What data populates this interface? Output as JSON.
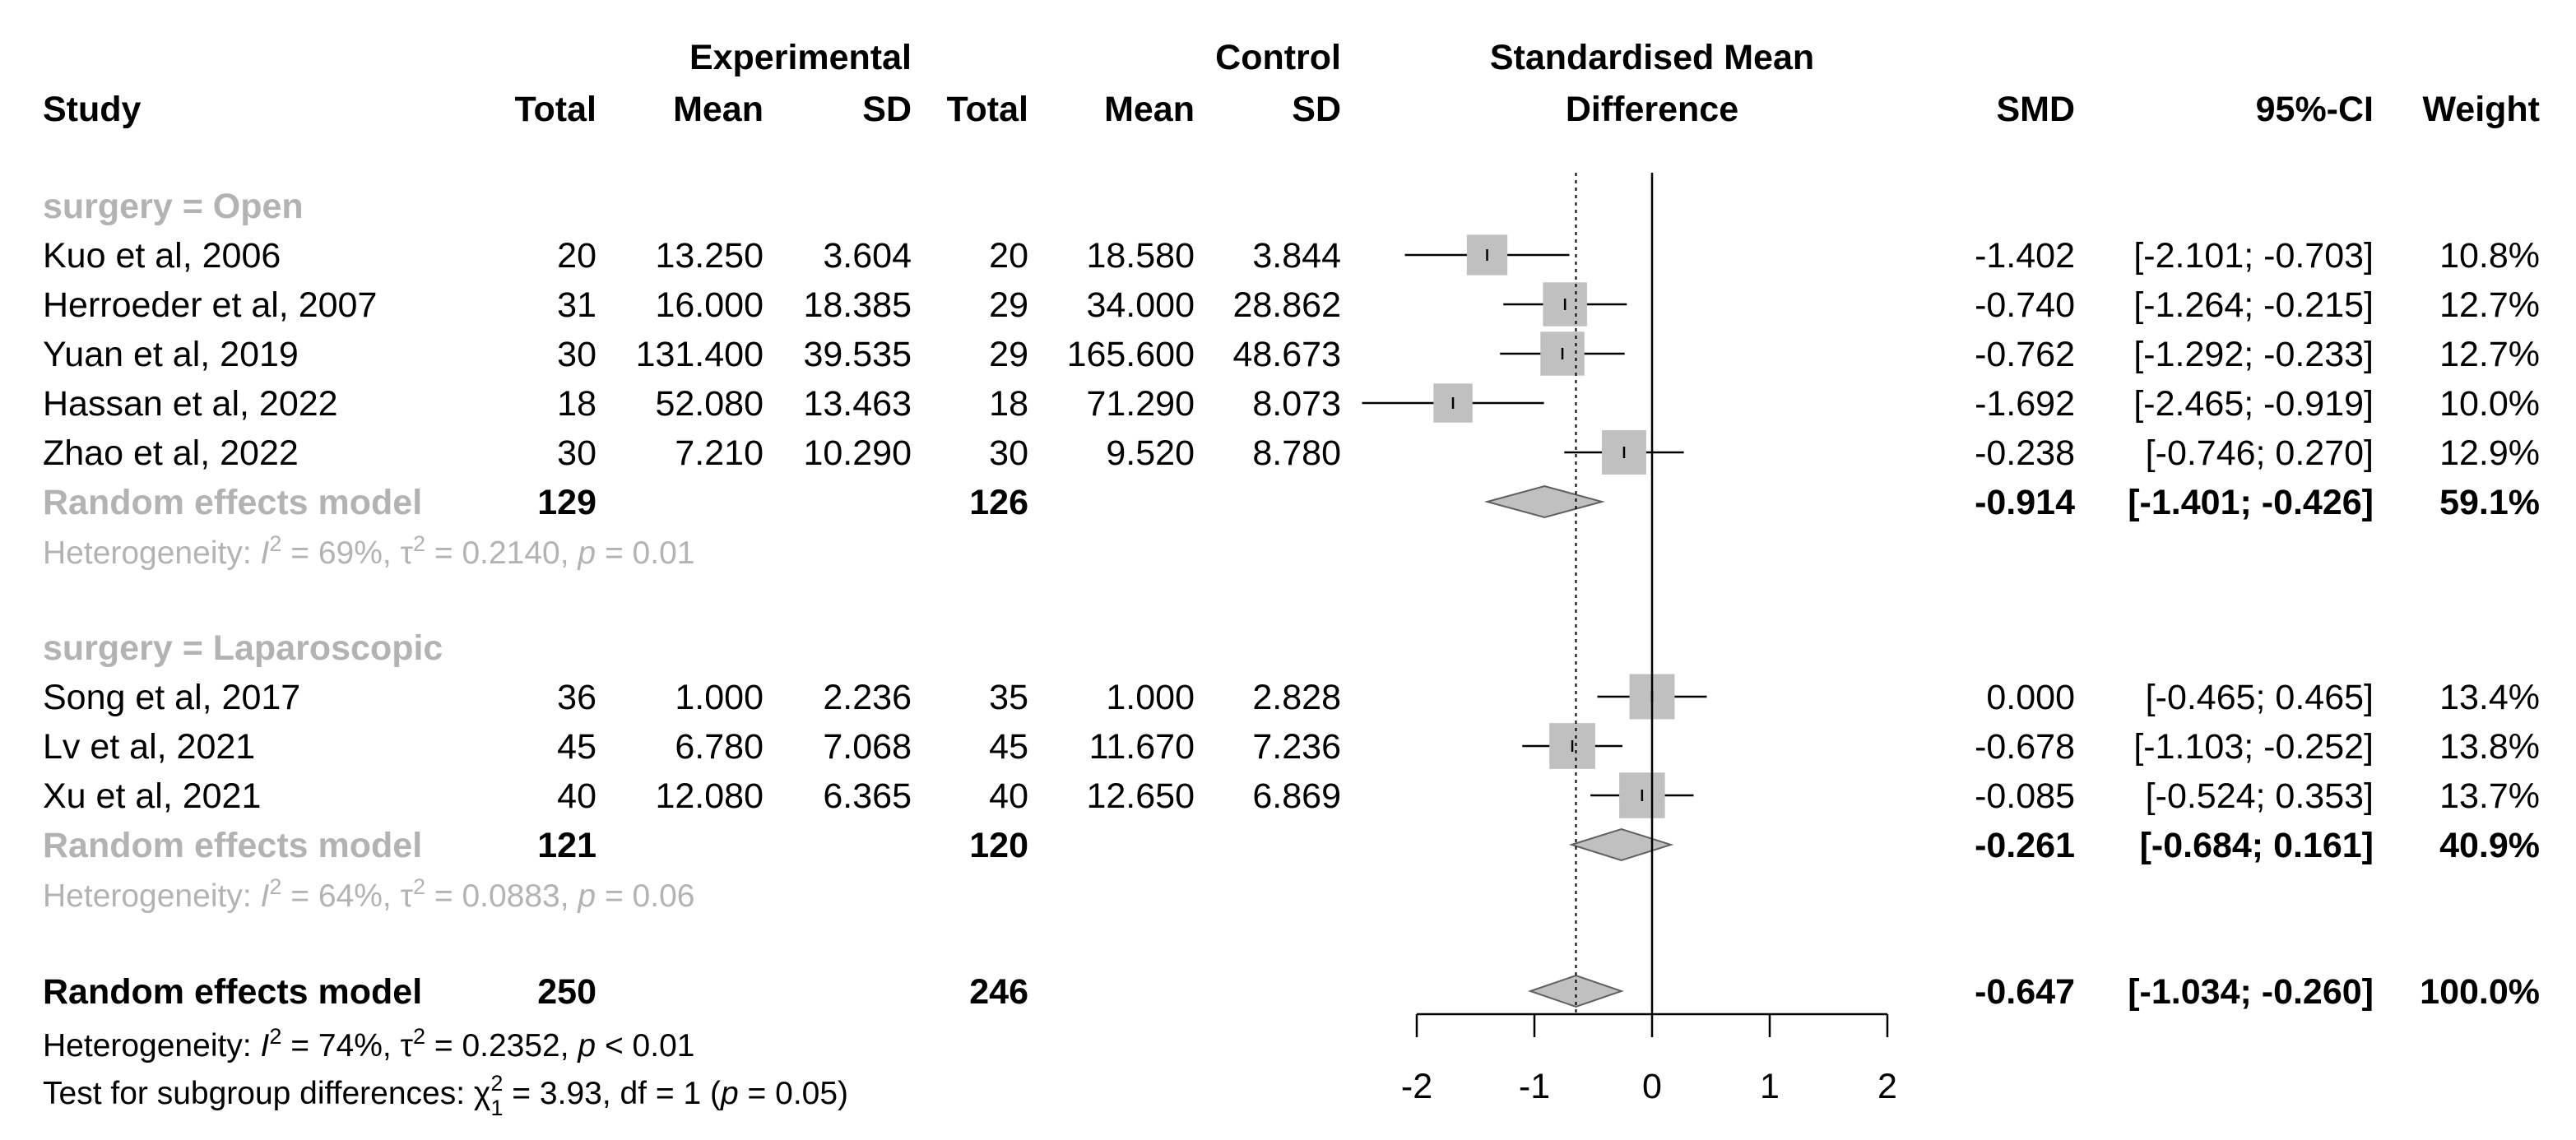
{
  "headers": {
    "study": "Study",
    "exp_group": "Experimental",
    "ctl_group": "Control",
    "exp_total": "Total",
    "exp_mean": "Mean",
    "exp_sd": "SD",
    "ctl_total": "Total",
    "ctl_mean": "Mean",
    "ctl_sd": "SD",
    "effect_line1": "Standardised Mean",
    "effect_line2": "Difference",
    "smd": "SMD",
    "ci": "95%-CI",
    "weight": "Weight"
  },
  "colors": {
    "square": "#c0c0c0",
    "diamond": "#c0c0c0",
    "subgroup_text": "#b3b3b3",
    "line": "#000000"
  },
  "chart_data": {
    "type": "forest",
    "title": "Standardised Mean Difference",
    "xlabel": "",
    "xlim": [
      -2,
      2
    ],
    "x_ticks": [
      "-2",
      "-1",
      "0",
      "1",
      "2"
    ],
    "x_tick_values": [
      -2,
      -1,
      0,
      1,
      2
    ],
    "reference_line": 0,
    "overall_line": -0.647,
    "subgroups": [
      {
        "label": "surgery = Open",
        "studies": [
          {
            "study": "Kuo et al, 2006",
            "e_total": "20",
            "e_mean": "13.250",
            "e_sd": "3.604",
            "c_total": "20",
            "c_mean": "18.580",
            "c_sd": "3.844",
            "smd": -1.402,
            "lo": -2.101,
            "hi": -0.703,
            "smd_text": "-1.402",
            "ci_text": "[-2.101; -0.703]",
            "weight": "10.8%",
            "w": 10.8
          },
          {
            "study": "Herroeder et al, 2007",
            "e_total": "31",
            "e_mean": "16.000",
            "e_sd": "18.385",
            "c_total": "29",
            "c_mean": "34.000",
            "c_sd": "28.862",
            "smd": -0.74,
            "lo": -1.264,
            "hi": -0.215,
            "smd_text": "-0.740",
            "ci_text": "[-1.264; -0.215]",
            "weight": "12.7%",
            "w": 12.7
          },
          {
            "study": "Yuan et al, 2019",
            "e_total": "30",
            "e_mean": "131.400",
            "e_sd": "39.535",
            "c_total": "29",
            "c_mean": "165.600",
            "c_sd": "48.673",
            "smd": -0.762,
            "lo": -1.292,
            "hi": -0.233,
            "smd_text": "-0.762",
            "ci_text": "[-1.292; -0.233]",
            "weight": "12.7%",
            "w": 12.7
          },
          {
            "study": "Hassan et al, 2022",
            "e_total": "18",
            "e_mean": "52.080",
            "e_sd": "13.463",
            "c_total": "18",
            "c_mean": "71.290",
            "c_sd": "8.073",
            "smd": -1.692,
            "lo": -2.465,
            "hi": -0.919,
            "smd_text": "-1.692",
            "ci_text": "[-2.465; -0.919]",
            "weight": "10.0%",
            "w": 10.0
          },
          {
            "study": "Zhao et al, 2022",
            "e_total": "30",
            "e_mean": "7.210",
            "e_sd": "10.290",
            "c_total": "30",
            "c_mean": "9.520",
            "c_sd": "8.780",
            "smd": -0.238,
            "lo": -0.746,
            "hi": 0.27,
            "smd_text": "-0.238",
            "ci_text": "[-0.746; 0.270]",
            "weight": "12.9%",
            "w": 12.9
          }
        ],
        "pooled": {
          "label": "Random effects model",
          "e_total": "129",
          "c_total": "126",
          "smd": -0.914,
          "lo": -1.401,
          "hi": -0.426,
          "smd_text": "-0.914",
          "ci_text": "[-1.401; -0.426]",
          "weight": "59.1%"
        },
        "het": {
          "prefix": "Heterogeneity: ",
          "I": "I",
          "sup2": "2",
          "i2": " = 69%, ",
          "tau": "τ",
          "t2": " = 0.2140, ",
          "p": "p",
          "pval": " = 0.01"
        }
      },
      {
        "label": "surgery = Laparoscopic",
        "studies": [
          {
            "study": "Song et al, 2017",
            "e_total": "36",
            "e_mean": "1.000",
            "e_sd": "2.236",
            "c_total": "35",
            "c_mean": "1.000",
            "c_sd": "2.828",
            "smd": 0.0,
            "lo": -0.465,
            "hi": 0.465,
            "smd_text": "0.000",
            "ci_text": "[-0.465; 0.465]",
            "weight": "13.4%",
            "w": 13.4
          },
          {
            "study": "Lv et al, 2021",
            "e_total": "45",
            "e_mean": "6.780",
            "e_sd": "7.068",
            "c_total": "45",
            "c_mean": "11.670",
            "c_sd": "7.236",
            "smd": -0.678,
            "lo": -1.103,
            "hi": -0.252,
            "smd_text": "-0.678",
            "ci_text": "[-1.103; -0.252]",
            "weight": "13.8%",
            "w": 13.8
          },
          {
            "study": "Xu et al, 2021",
            "e_total": "40",
            "e_mean": "12.080",
            "e_sd": "6.365",
            "c_total": "40",
            "c_mean": "12.650",
            "c_sd": "6.869",
            "smd": -0.085,
            "lo": -0.524,
            "hi": 0.353,
            "smd_text": "-0.085",
            "ci_text": "[-0.524; 0.353]",
            "weight": "13.7%",
            "w": 13.7
          }
        ],
        "pooled": {
          "label": "Random effects model",
          "e_total": "121",
          "c_total": "120",
          "smd": -0.261,
          "lo": -0.684,
          "hi": 0.161,
          "smd_text": "-0.261",
          "ci_text": "[-0.684; 0.161]",
          "weight": "40.9%"
        },
        "het": {
          "prefix": "Heterogeneity: ",
          "I": "I",
          "sup2": "2",
          "i2": " = 64%, ",
          "tau": "τ",
          "t2": " = 0.0883, ",
          "p": "p",
          "pval": " = 0.06"
        }
      }
    ],
    "overall": {
      "label": "Random effects model",
      "e_total": "250",
      "c_total": "246",
      "smd": -0.647,
      "lo": -1.034,
      "hi": -0.26,
      "smd_text": "-0.647",
      "ci_text": "[-1.034; -0.260]",
      "weight": "100.0%",
      "het": {
        "prefix": "Heterogeneity: ",
        "I": "I",
        "sup2": "2",
        "i2": " = 74%, ",
        "tau": "τ",
        "t2": " = 0.2352, ",
        "p": "p",
        "pval": " < 0.01"
      },
      "subgroup_test": {
        "prefix": "Test for subgroup differences: ",
        "chi": "χ",
        "sup": "2",
        "sub": "1",
        "stat": " = 3.93, df = 1 (",
        "p": "p",
        "pval": " = 0.05)"
      }
    }
  }
}
